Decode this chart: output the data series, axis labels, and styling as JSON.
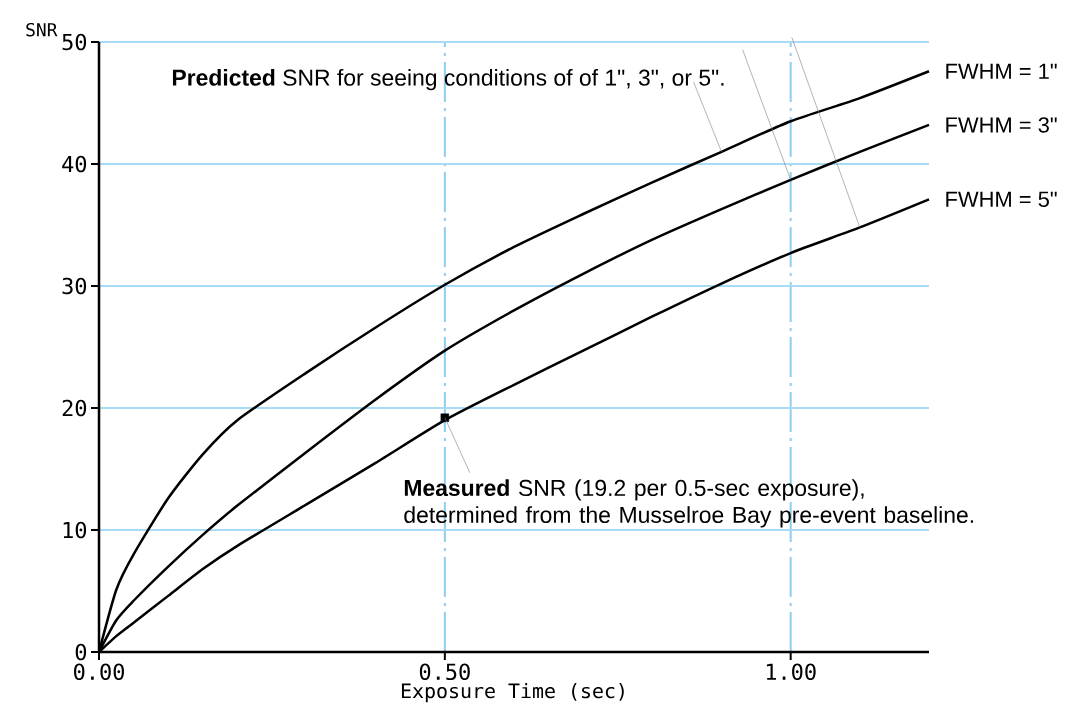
{
  "chart_data": {
    "type": "line",
    "xlabel": "Exposure Time (sec)",
    "ylabel": "SNR",
    "xlim": [
      0,
      1.2
    ],
    "ylim": [
      0,
      50
    ],
    "xticks": [
      {
        "value": 0,
        "label": "0.00"
      },
      {
        "value": 0.5,
        "label": "0.50"
      },
      {
        "value": 1.0,
        "label": "1.00"
      }
    ],
    "yticks": [
      0,
      10,
      20,
      30,
      40,
      50
    ],
    "grid": true,
    "annotations": [
      {
        "text": "**Predicted** SNR for seeing conditions of of 1\", 3\", or 5\".",
        "x": 0.9,
        "y": 41.0
      },
      {
        "text": "**Measured** SNR (19.2 per 0.5-sec exposure), determined from the Musselroe Bay pre-event baseline.",
        "x": 0.5,
        "y": 19.2
      }
    ],
    "series": [
      {
        "name": "FWHM = 1\"",
        "color": "#000000",
        "marker": "none",
        "x": [
          0,
          0.025,
          0.05,
          0.1,
          0.15,
          0.2,
          0.3,
          0.4,
          0.5,
          0.6,
          0.7,
          0.8,
          0.9,
          1.0,
          1.1,
          1.2
        ],
        "values": [
          0,
          5.1,
          8.0,
          12.6,
          16.2,
          19.0,
          22.9,
          26.6,
          30.1,
          33.2,
          35.9,
          38.5,
          41.0,
          43.5,
          45.4,
          47.6
        ]
      },
      {
        "name": "FWHM = 3\"",
        "color": "#000000",
        "marker": "none",
        "x": [
          0,
          0.025,
          0.05,
          0.1,
          0.15,
          0.2,
          0.3,
          0.4,
          0.5,
          0.6,
          0.7,
          0.8,
          0.9,
          1.0,
          1.1,
          1.2
        ],
        "values": [
          0,
          2.6,
          4.2,
          7.0,
          9.6,
          12.0,
          16.4,
          20.7,
          24.7,
          28.0,
          31.0,
          33.8,
          36.3,
          38.7,
          41.0,
          43.2
        ]
      },
      {
        "name": "FWHM = 5\"",
        "color": "#000000",
        "marker": "none",
        "x": [
          0,
          0.025,
          0.05,
          0.1,
          0.15,
          0.2,
          0.3,
          0.4,
          0.5,
          0.6,
          0.7,
          0.8,
          0.9,
          1.0,
          1.1,
          1.2
        ],
        "values": [
          0,
          1.3,
          2.4,
          4.6,
          6.8,
          8.7,
          12.1,
          15.5,
          19.0,
          21.9,
          24.7,
          27.5,
          30.2,
          32.7,
          34.8,
          37.1
        ]
      },
      {
        "color": "#000000",
        "type": "scatter",
        "marker": "square",
        "x": [
          0.5
        ],
        "values": [
          19.2
        ]
      }
    ]
  }
}
